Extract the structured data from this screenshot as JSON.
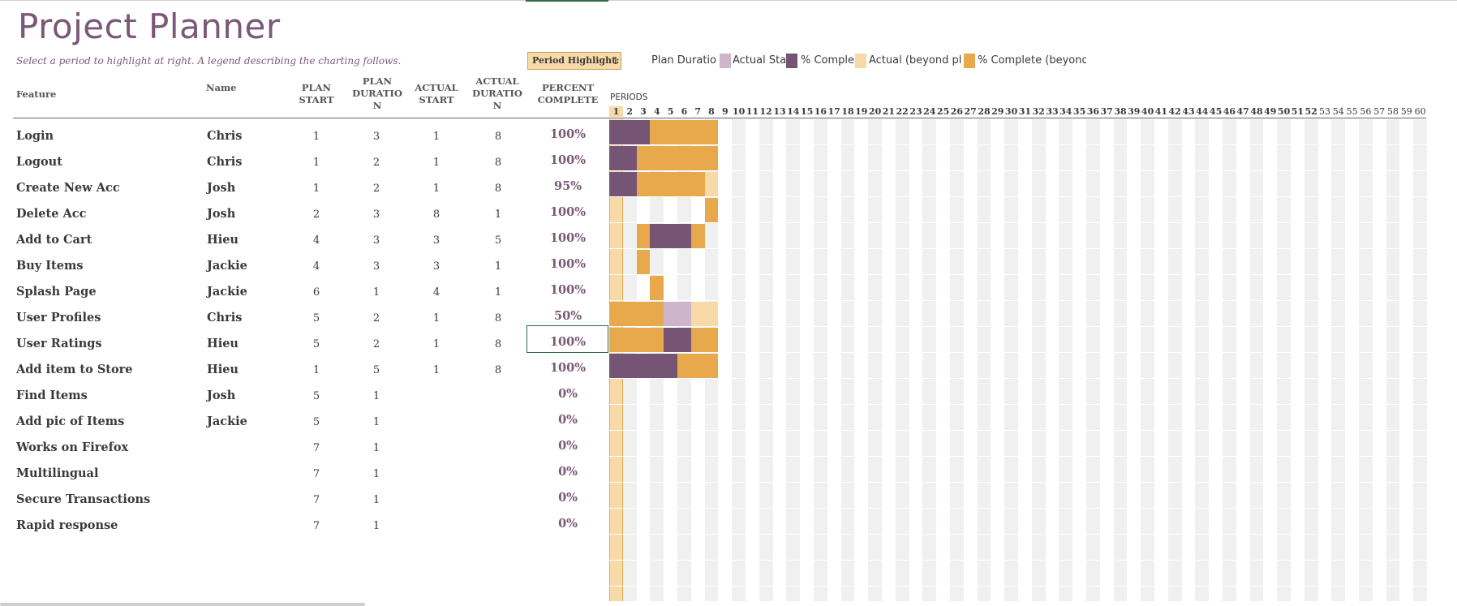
{
  "title": "Project Planner",
  "subtitle": "Select a period to highlight at right.  A legend describing the charting follows.",
  "period_highlight": {
    "label": "Period Highlight:",
    "value": "1"
  },
  "legend": [
    {
      "label": "Plan Duratio",
      "color": "#cdb5cc"
    },
    {
      "label": "Actual Sta",
      "color": "#755573"
    },
    {
      "label": "% Comple",
      "color": "#f8d9a8"
    },
    {
      "label": "Actual (beyond pl",
      "color": "#e8a84c"
    },
    {
      "label": "% Complete (beyond",
      "color": ""
    }
  ],
  "headers": {
    "feature": "Feature",
    "name": "Name",
    "plan_start": "PLAN START",
    "plan_duration": "PLAN DURATIO N",
    "actual_start": "ACTUAL START",
    "actual_duration": "ACTUAL DURATIO N",
    "percent_complete": "PERCENT COMPLETE",
    "periods": "PERIODS"
  },
  "period_numbers": [
    "1",
    "2",
    "3",
    "4",
    "5",
    "6",
    "7",
    "8",
    "9",
    "10",
    "11",
    "12",
    "13",
    "14",
    "15",
    "16",
    "17",
    "18",
    "19",
    "20",
    "21",
    "22",
    "23",
    "24",
    "25",
    "26",
    "27",
    "28",
    "29",
    "30",
    "31",
    "32",
    "33",
    "34",
    "35",
    "36",
    "37",
    "38",
    "39",
    "40",
    "41",
    "42",
    "43",
    "44",
    "45",
    "46",
    "47",
    "48",
    "49",
    "50",
    "51",
    "52",
    "53",
    "54",
    "55",
    "56",
    "57",
    "58",
    "59",
    "60"
  ],
  "colors": {
    "plan": "#cdb5cc",
    "actual": "#e8a84c",
    "percent": "#755573",
    "beyond": "#f8d9a8",
    "title": "#7a5877"
  },
  "rows": [
    {
      "feature": "Login",
      "name": "Chris",
      "plan_start": "1",
      "plan_duration": "3",
      "actual_start": "1",
      "actual_duration": "8",
      "percent": "100%"
    },
    {
      "feature": "Logout",
      "name": "Chris",
      "plan_start": "1",
      "plan_duration": "2",
      "actual_start": "1",
      "actual_duration": "8",
      "percent": "100%"
    },
    {
      "feature": "Create New Acc",
      "name": "Josh",
      "plan_start": "1",
      "plan_duration": "2",
      "actual_start": "1",
      "actual_duration": "8",
      "percent": "95%"
    },
    {
      "feature": "Delete Acc",
      "name": "Josh",
      "plan_start": "2",
      "plan_duration": "3",
      "actual_start": "8",
      "actual_duration": "1",
      "percent": "100%"
    },
    {
      "feature": "Add to Cart",
      "name": "Hieu",
      "plan_start": "4",
      "plan_duration": "3",
      "actual_start": "3",
      "actual_duration": "5",
      "percent": "100%"
    },
    {
      "feature": "Buy Items",
      "name": "Jackie",
      "plan_start": "4",
      "plan_duration": "3",
      "actual_start": "3",
      "actual_duration": "1",
      "percent": "100%"
    },
    {
      "feature": "Splash Page",
      "name": "Jackie",
      "plan_start": "6",
      "plan_duration": "1",
      "actual_start": "4",
      "actual_duration": "1",
      "percent": "100%"
    },
    {
      "feature": "User Profiles",
      "name": "Chris",
      "plan_start": "5",
      "plan_duration": "2",
      "actual_start": "1",
      "actual_duration": "8",
      "percent": "50%"
    },
    {
      "feature": "User Ratings",
      "name": "Hieu",
      "plan_start": "5",
      "plan_duration": "2",
      "actual_start": "1",
      "actual_duration": "8",
      "percent": "100%"
    },
    {
      "feature": "Add item to Store",
      "name": "Hieu",
      "plan_start": "1",
      "plan_duration": "5",
      "actual_start": "1",
      "actual_duration": "8",
      "percent": "100%"
    },
    {
      "feature": "Find Items",
      "name": "Josh",
      "plan_start": "5",
      "plan_duration": "1",
      "actual_start": "",
      "actual_duration": "",
      "percent": "0%"
    },
    {
      "feature": "Add pic of Items",
      "name": "Jackie",
      "plan_start": "5",
      "plan_duration": "1",
      "actual_start": "",
      "actual_duration": "",
      "percent": "0%"
    },
    {
      "feature": "Works on Firefox",
      "name": "",
      "plan_start": "7",
      "plan_duration": "1",
      "actual_start": "",
      "actual_duration": "",
      "percent": "0%"
    },
    {
      "feature": "Multilingual",
      "name": "",
      "plan_start": "7",
      "plan_duration": "1",
      "actual_start": "",
      "actual_duration": "",
      "percent": "0%"
    },
    {
      "feature": "Secure Transactions",
      "name": "",
      "plan_start": "7",
      "plan_duration": "1",
      "actual_start": "",
      "actual_duration": "",
      "percent": "0%"
    },
    {
      "feature": "Rapid response",
      "name": "",
      "plan_start": "7",
      "plan_duration": "1",
      "actual_start": "",
      "actual_duration": "",
      "percent": "0%"
    }
  ],
  "gantt": [
    {
      "segments": [
        {
          "from": 1,
          "to": 3,
          "kind": "percent"
        },
        {
          "from": 4,
          "to": 8,
          "kind": "actual"
        }
      ]
    },
    {
      "segments": [
        {
          "from": 1,
          "to": 2,
          "kind": "percent"
        },
        {
          "from": 3,
          "to": 8,
          "kind": "actual"
        }
      ]
    },
    {
      "segments": [
        {
          "from": 1,
          "to": 2,
          "kind": "percent"
        },
        {
          "from": 3,
          "to": 7,
          "kind": "actual"
        },
        {
          "from": 8,
          "to": 8,
          "kind": "beyond"
        }
      ]
    },
    {
      "segments": [
        {
          "from": 8,
          "to": 8,
          "kind": "actual"
        }
      ]
    },
    {
      "segments": [
        {
          "from": 3,
          "to": 3,
          "kind": "actual"
        },
        {
          "from": 4,
          "to": 6,
          "kind": "percent"
        },
        {
          "from": 7,
          "to": 7,
          "kind": "actual"
        }
      ]
    },
    {
      "segments": [
        {
          "from": 3,
          "to": 3,
          "kind": "actual"
        }
      ]
    },
    {
      "segments": [
        {
          "from": 4,
          "to": 4,
          "kind": "actual"
        }
      ]
    },
    {
      "segments": [
        {
          "from": 1,
          "to": 4,
          "kind": "actual"
        },
        {
          "from": 5,
          "to": 6,
          "kind": "plan"
        },
        {
          "from": 7,
          "to": 8,
          "kind": "beyond"
        }
      ]
    },
    {
      "segments": [
        {
          "from": 1,
          "to": 4,
          "kind": "actual"
        },
        {
          "from": 5,
          "to": 6,
          "kind": "percent"
        },
        {
          "from": 7,
          "to": 8,
          "kind": "actual"
        }
      ]
    },
    {
      "segments": [
        {
          "from": 1,
          "to": 5,
          "kind": "percent"
        },
        {
          "from": 6,
          "to": 8,
          "kind": "actual"
        }
      ]
    },
    {
      "segments": []
    },
    {
      "segments": []
    },
    {
      "segments": []
    },
    {
      "segments": []
    },
    {
      "segments": []
    },
    {
      "segments": []
    }
  ]
}
